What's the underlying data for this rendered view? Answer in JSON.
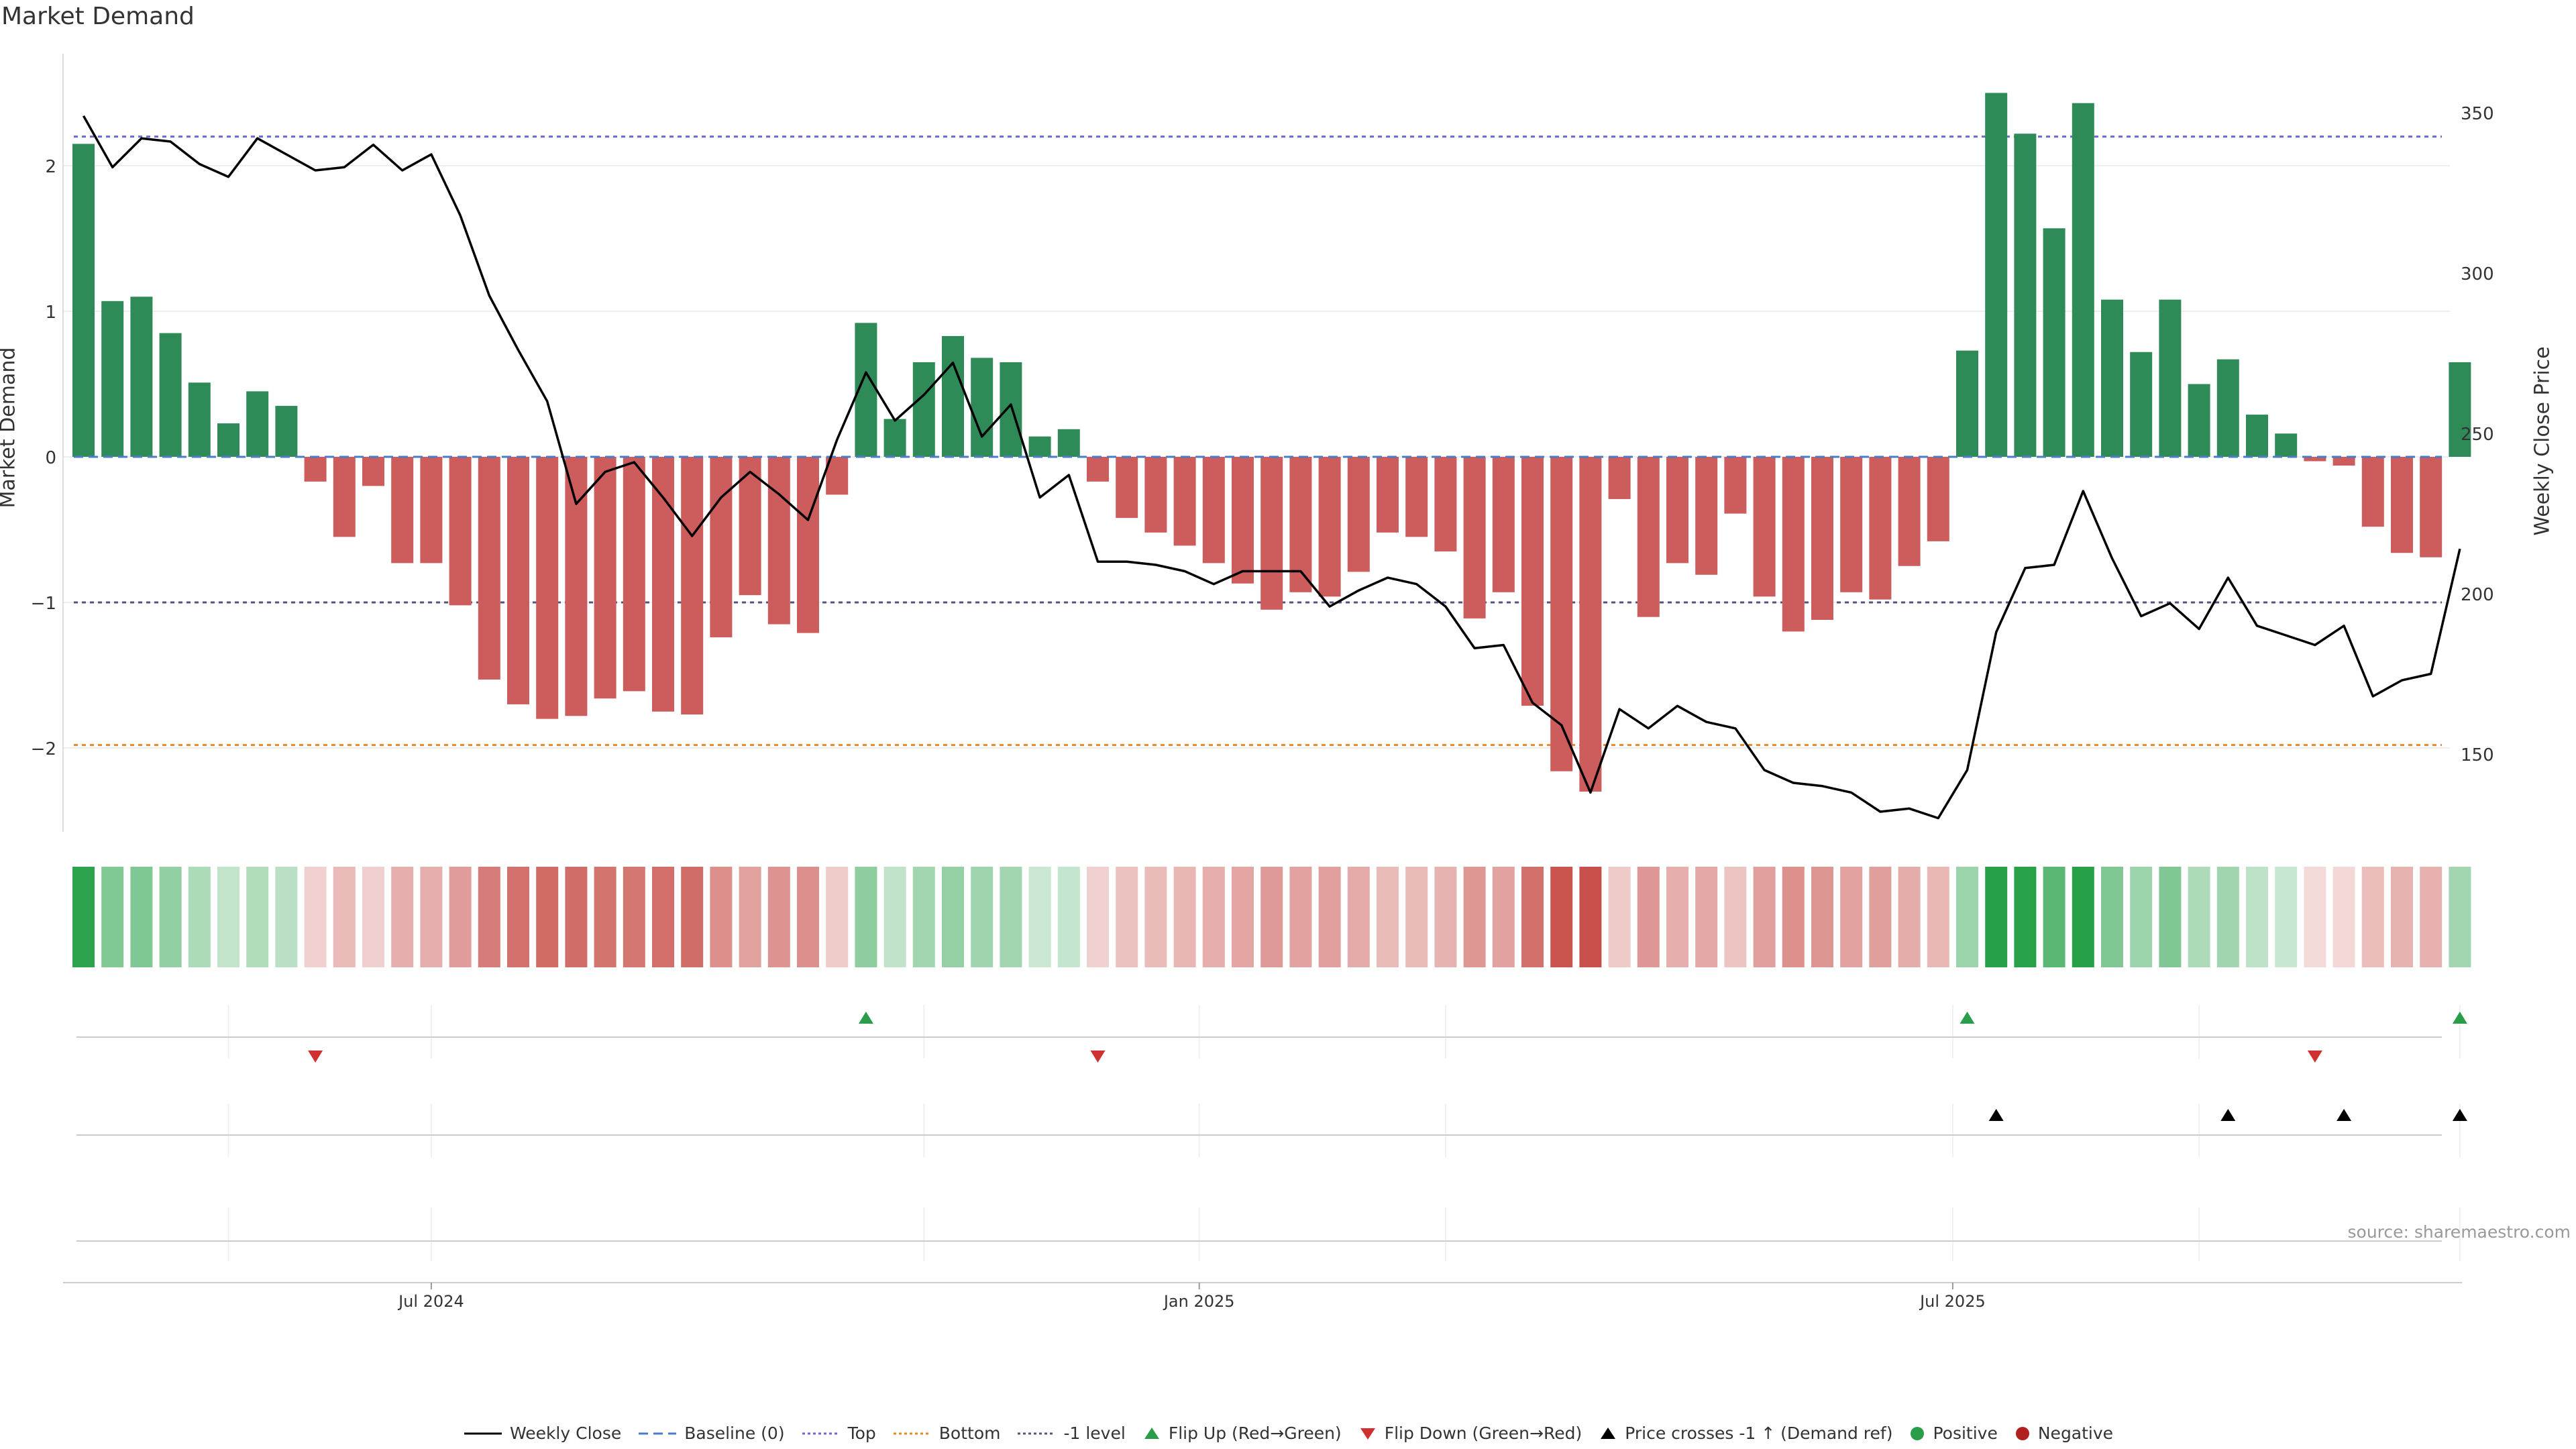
{
  "title": "Market Demand",
  "source": "source: sharemaestro.com",
  "chart_data": {
    "type": "bar",
    "title": "Market Demand",
    "ylabel": "Market Demand",
    "y2label": "Weekly Close Price",
    "ylim": [
      -2.6,
      2.6
    ],
    "y2lim": [
      122,
      378
    ],
    "yticks": [
      {
        "v": 2,
        "t": "2"
      },
      {
        "v": 1,
        "t": "1"
      },
      {
        "v": 0,
        "t": "0"
      },
      {
        "v": -1,
        "t": "−1"
      },
      {
        "v": -2,
        "t": "−2"
      }
    ],
    "y2ticks": [
      {
        "v": 350,
        "t": "350"
      },
      {
        "v": 300,
        "t": "300"
      },
      {
        "v": 250,
        "t": "250"
      },
      {
        "v": 200,
        "t": "200"
      },
      {
        "v": 150,
        "t": "150"
      }
    ],
    "xticks": [
      {
        "i": 12,
        "t": "Jul 2024"
      },
      {
        "i": 38.5,
        "t": "Jan 2025"
      },
      {
        "i": 64.5,
        "t": "Jul 2025"
      }
    ],
    "levels": {
      "top": 2.2,
      "bottom": -1.98,
      "minus_one": -1,
      "baseline": 0
    },
    "demand": [
      2.15,
      1.07,
      1.1,
      0.85,
      0.51,
      0.23,
      0.45,
      0.35,
      -0.17,
      -0.55,
      -0.2,
      -0.73,
      -0.73,
      -1.02,
      -1.53,
      -1.7,
      -1.8,
      -1.78,
      -1.66,
      -1.61,
      -1.75,
      -1.77,
      -1.24,
      -0.95,
      -1.15,
      -1.21,
      -0.26,
      0.92,
      0.26,
      0.65,
      0.83,
      0.68,
      0.65,
      0.14,
      0.19,
      -0.17,
      -0.42,
      -0.52,
      -0.61,
      -0.73,
      -0.87,
      -1.05,
      -0.93,
      -0.96,
      -0.79,
      -0.52,
      -0.55,
      -0.65,
      -1.11,
      -0.93,
      -1.71,
      -2.16,
      -2.3,
      -0.29,
      -1.1,
      -0.73,
      -0.81,
      -0.39,
      -0.96,
      -1.2,
      -1.12,
      -0.93,
      -0.98,
      -0.75,
      -0.58,
      0.73,
      2.5,
      2.22,
      1.57,
      2.43,
      1.08,
      0.72,
      1.08,
      0.5,
      0.67,
      0.29,
      0.16,
      -0.03,
      -0.06,
      -0.48,
      -0.66,
      -0.69,
      0.65
    ],
    "close": [
      349,
      333,
      342,
      341,
      334,
      330,
      342,
      337,
      332,
      333,
      340,
      332,
      337,
      318,
      293,
      276,
      260,
      228,
      238,
      241,
      230,
      218,
      230,
      238,
      231,
      223,
      248,
      269,
      254,
      262,
      272,
      249,
      259,
      230,
      237,
      210,
      210,
      209,
      207,
      203,
      207,
      207,
      207,
      196,
      201,
      205,
      203,
      196,
      183,
      184,
      166,
      159,
      138,
      164,
      158,
      165,
      160,
      158,
      145,
      141,
      140,
      138,
      132,
      133,
      130,
      145,
      188,
      208,
      209,
      232,
      211,
      193,
      197,
      189,
      205,
      190,
      187,
      184,
      190,
      168,
      173,
      175,
      214
    ],
    "flip_up": [
      27,
      65,
      82
    ],
    "flip_down": [
      8,
      35,
      77
    ],
    "price_cross": [
      66,
      74,
      78,
      82
    ]
  },
  "legend": [
    {
      "label": "Weekly Close",
      "icon": "line-solid"
    },
    {
      "label": "Baseline (0)",
      "icon": "line-dashed"
    },
    {
      "label": "Top",
      "icon": "line-dotted-blue"
    },
    {
      "label": "Bottom",
      "icon": "line-dotted-orange"
    },
    {
      "label": "-1 level",
      "icon": "line-dotted-grey"
    },
    {
      "label": "Flip Up (Red→Green)",
      "icon": "triangle-up-green"
    },
    {
      "label": "Flip Down (Green→Red)",
      "icon": "triangle-down-red"
    },
    {
      "label": "Price crosses -1 ↑ (Demand ref)",
      "icon": "triangle-up-black"
    },
    {
      "label": "Positive",
      "icon": "dot-green"
    },
    {
      "label": "Negative",
      "icon": "dot-red"
    }
  ],
  "colors": {
    "pos_bar": "#2e8b57",
    "neg_bar": "#cd5c5c",
    "top_line": "#6a6ad0",
    "bottom_line": "#e8892a",
    "minus_one_line": "#555577",
    "baseline": "#4a7bc8",
    "flip_up": "#2a9d4a",
    "flip_down": "#d03030",
    "cross": "#000000",
    "positive_dot": "#2a9d4a",
    "negative_dot": "#b02020"
  }
}
